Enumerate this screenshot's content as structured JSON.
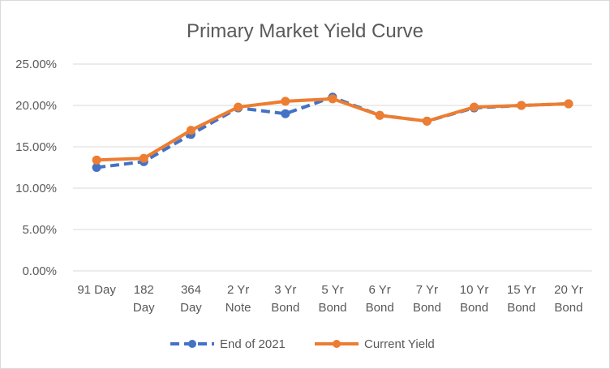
{
  "chart_data": {
    "type": "line",
    "title": "Primary Market Yield Curve",
    "xlabel": "",
    "ylabel": "",
    "categories": [
      [
        "91 Day"
      ],
      [
        "182",
        "Day"
      ],
      [
        "364",
        "Day"
      ],
      [
        "2 Yr",
        "Note"
      ],
      [
        "3 Yr",
        "Bond"
      ],
      [
        "5 Yr",
        "Bond"
      ],
      [
        "6 Yr",
        "Bond"
      ],
      [
        "7 Yr",
        "Bond"
      ],
      [
        "10 Yr",
        "Bond"
      ],
      [
        "15 Yr",
        "Bond"
      ],
      [
        "20 Yr",
        "Bond"
      ]
    ],
    "ylim": [
      0,
      25
    ],
    "yticks": [
      "0.00%",
      "5.00%",
      "10.00%",
      "15.00%",
      "20.00%",
      "25.00%"
    ],
    "grid": true,
    "legend_position": "bottom",
    "series": [
      {
        "name": "End of 2021",
        "color": "#4472C4",
        "style": "dashed",
        "values": [
          12.5,
          13.2,
          16.5,
          19.7,
          19.0,
          21.0,
          18.8,
          18.1,
          19.7,
          20.0,
          20.2
        ]
      },
      {
        "name": "Current Yield",
        "color": "#ED7D31",
        "style": "solid",
        "values": [
          13.4,
          13.6,
          17.0,
          19.8,
          20.5,
          20.8,
          18.8,
          18.1,
          19.8,
          20.0,
          20.2
        ]
      }
    ]
  }
}
